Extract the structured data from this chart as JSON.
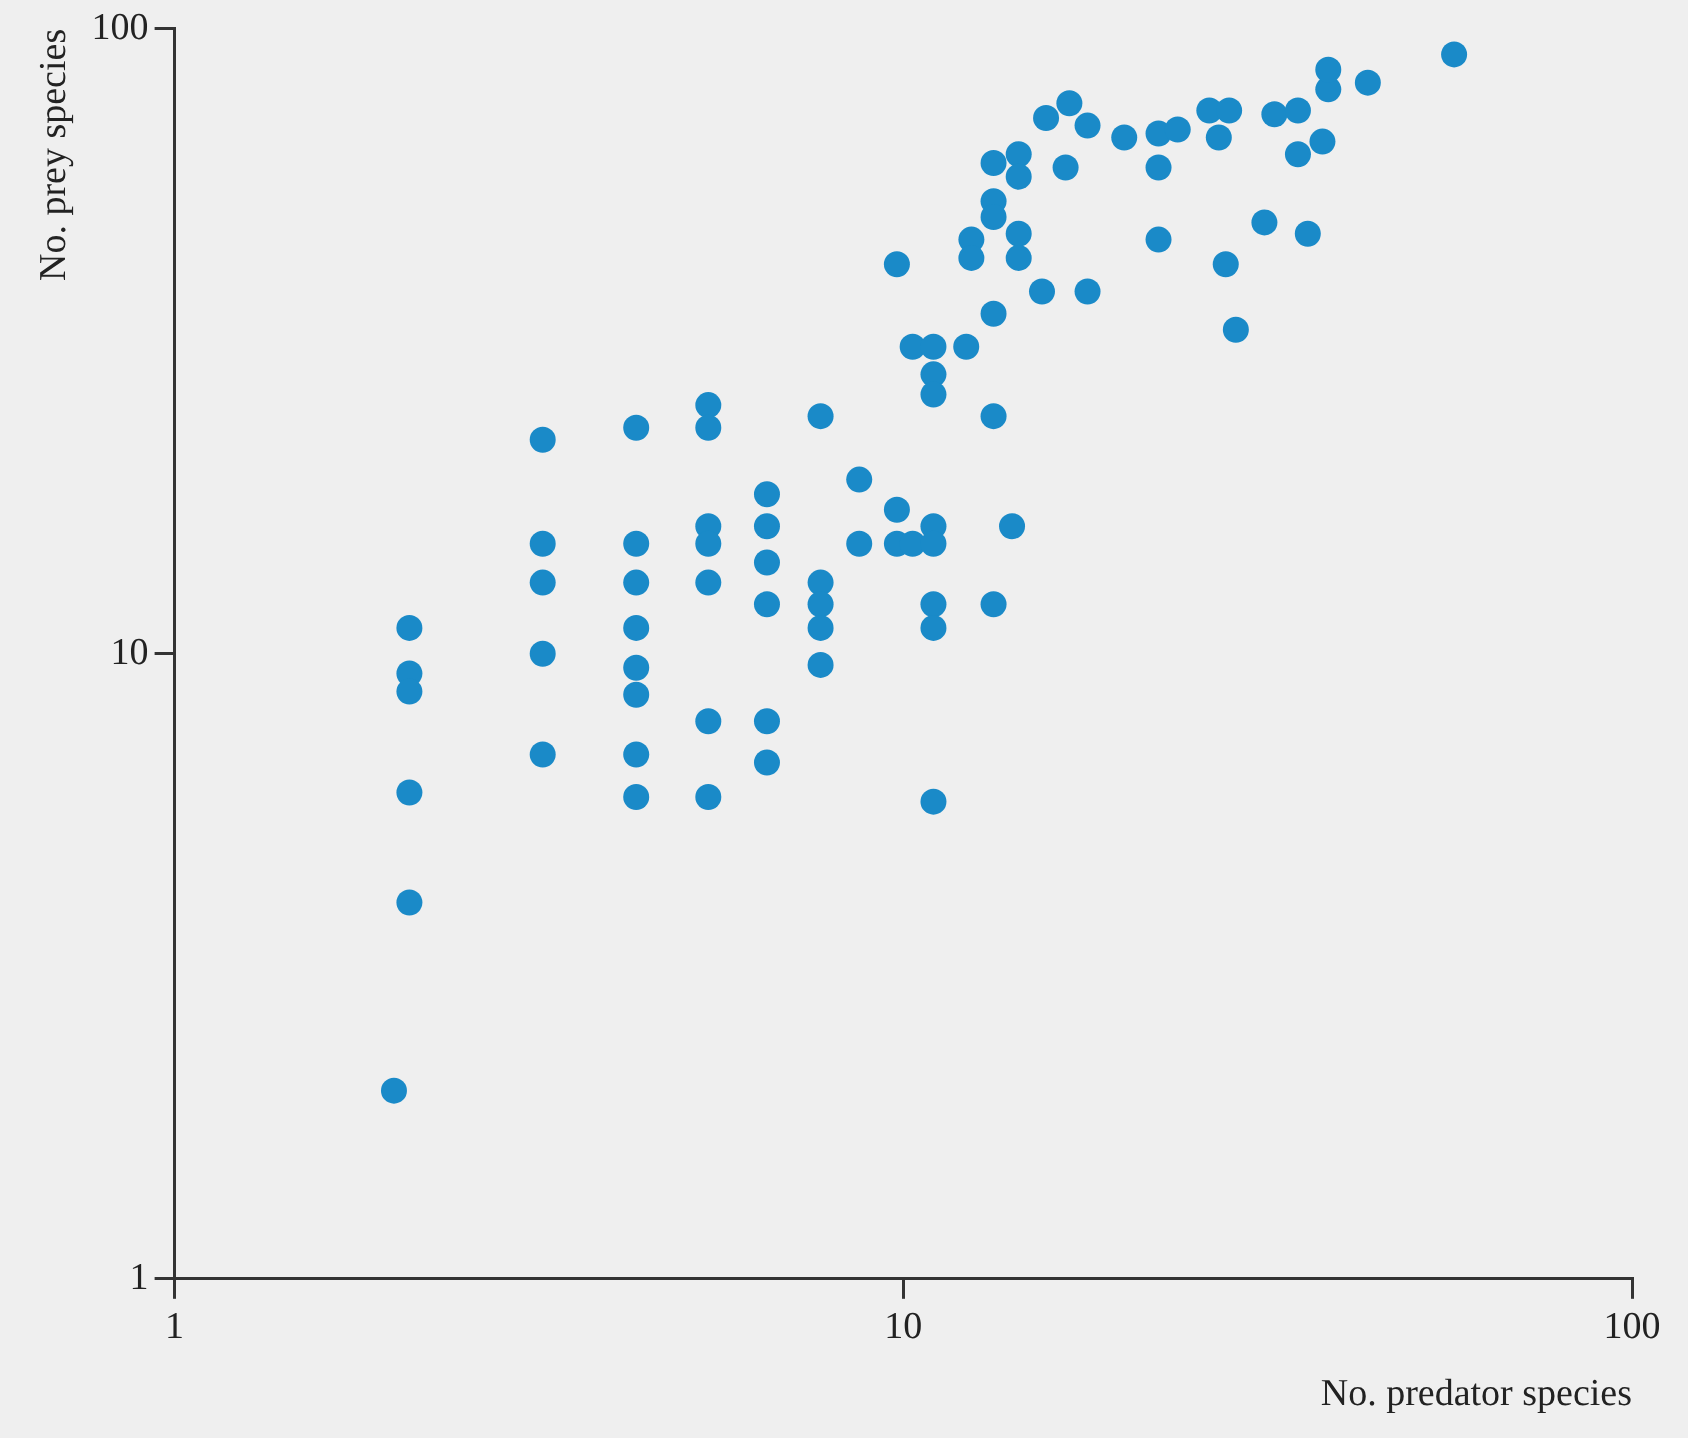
{
  "chart_data": {
    "type": "scatter",
    "xlabel": "No. predator species",
    "ylabel": "No. prey species",
    "log": "xy",
    "xlim": [
      1,
      100
    ],
    "ylim": [
      1,
      100
    ],
    "xticks": [
      1,
      10,
      100
    ],
    "yticks": [
      1,
      10,
      100
    ],
    "grid": false,
    "legend": false,
    "marker": "circle",
    "series": [
      {
        "color": "#1a8ac8",
        "x": [
          2.0,
          2.1,
          2.1,
          2.1,
          2.1,
          2.1,
          3.2,
          3.2,
          3.2,
          3.2,
          3.2,
          4.3,
          4.3,
          4.3,
          4.3,
          4.3,
          4.3,
          4.3,
          4.3,
          5.4,
          5.4,
          5.4,
          5.4,
          5.4,
          5.4,
          5.4,
          6.5,
          6.5,
          6.5,
          6.5,
          6.5,
          6.5,
          7.7,
          7.7,
          7.7,
          7.7,
          7.7,
          8.7,
          8.7,
          9.8,
          9.8,
          9.8,
          10.3,
          10.3,
          11,
          11,
          11,
          11,
          11,
          11,
          11,
          11,
          12.2,
          13.3,
          13.3,
          13.3,
          13.3,
          13.3,
          13.3,
          14.1,
          12.4,
          12.4,
          14.4,
          14.4,
          14.4,
          14.4,
          15.5,
          17.9,
          17.9,
          16.7,
          15.7,
          16.9,
          20.1,
          22.4,
          22.4,
          22.4,
          23.8,
          26.3,
          28.0,
          27.1,
          32.3,
          34.8,
          34.8,
          37.6,
          31.3,
          35.9,
          27.7,
          28.6,
          38.3,
          38.3,
          43.4,
          57
        ],
        "values": [
          2.0,
          4.0,
          6.0,
          11,
          9.3,
          8.7,
          22,
          15,
          13,
          10,
          6.9,
          23,
          15,
          13,
          11,
          9.5,
          8.6,
          6.9,
          5.9,
          25,
          23,
          16,
          15,
          13,
          7.8,
          5.9,
          18,
          16,
          14,
          12,
          7.8,
          6.7,
          24,
          13,
          12,
          11,
          9.6,
          19,
          15,
          17,
          15,
          42,
          31,
          15,
          28,
          26,
          16,
          31,
          15,
          12,
          11,
          5.8,
          31,
          35,
          24,
          12,
          53,
          50,
          61,
          16,
          46,
          43,
          47,
          43,
          63,
          58,
          38,
          38,
          70,
          60,
          72,
          76,
          67,
          68,
          60,
          46,
          69,
          74,
          74,
          67,
          73,
          74,
          63,
          66,
          49,
          47,
          42,
          33,
          80,
          86,
          82,
          91
        ]
      }
    ]
  }
}
